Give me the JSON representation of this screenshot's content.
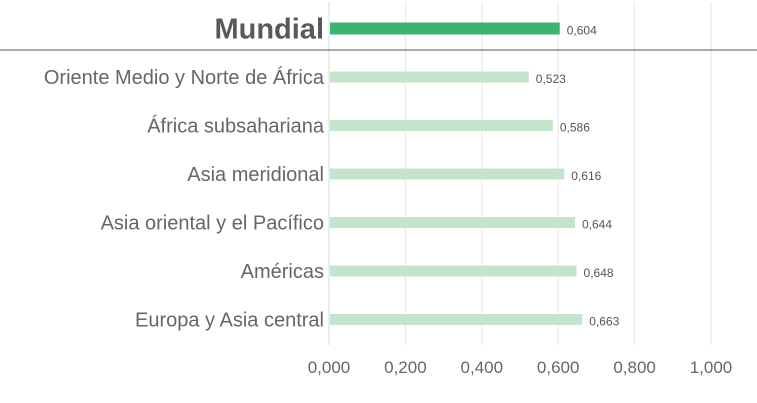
{
  "chart_data": {
    "type": "bar",
    "orientation": "horizontal",
    "title": "",
    "xlabel": "",
    "ylabel": "",
    "xlim": [
      0,
      1
    ],
    "x_ticks": [
      0,
      0.2,
      0.4,
      0.6,
      0.8,
      1.0
    ],
    "x_tick_labels": [
      "0,000",
      "0,200",
      "0,400",
      "0,600",
      "0,800",
      "1,000"
    ],
    "grid": "vertical",
    "legend": "none",
    "categories": [
      "Mundial",
      "Oriente Medio y Norte de África",
      "África subsahariana",
      "Asia meridional",
      "Asia oriental y el Pacífico",
      "Américas",
      "Europa y Asia central"
    ],
    "values": [
      0.604,
      0.523,
      0.586,
      0.616,
      0.644,
      0.648,
      0.663
    ],
    "value_labels": [
      "0,604",
      "0,523",
      "0,586",
      "0,616",
      "0,644",
      "0,648",
      "0,663"
    ],
    "highlight_category": "Mundial",
    "colors": {
      "highlight": "#3cb371",
      "bar": "#c4e4cc",
      "grid": "#e6e6e6",
      "separator": "#555555"
    }
  }
}
